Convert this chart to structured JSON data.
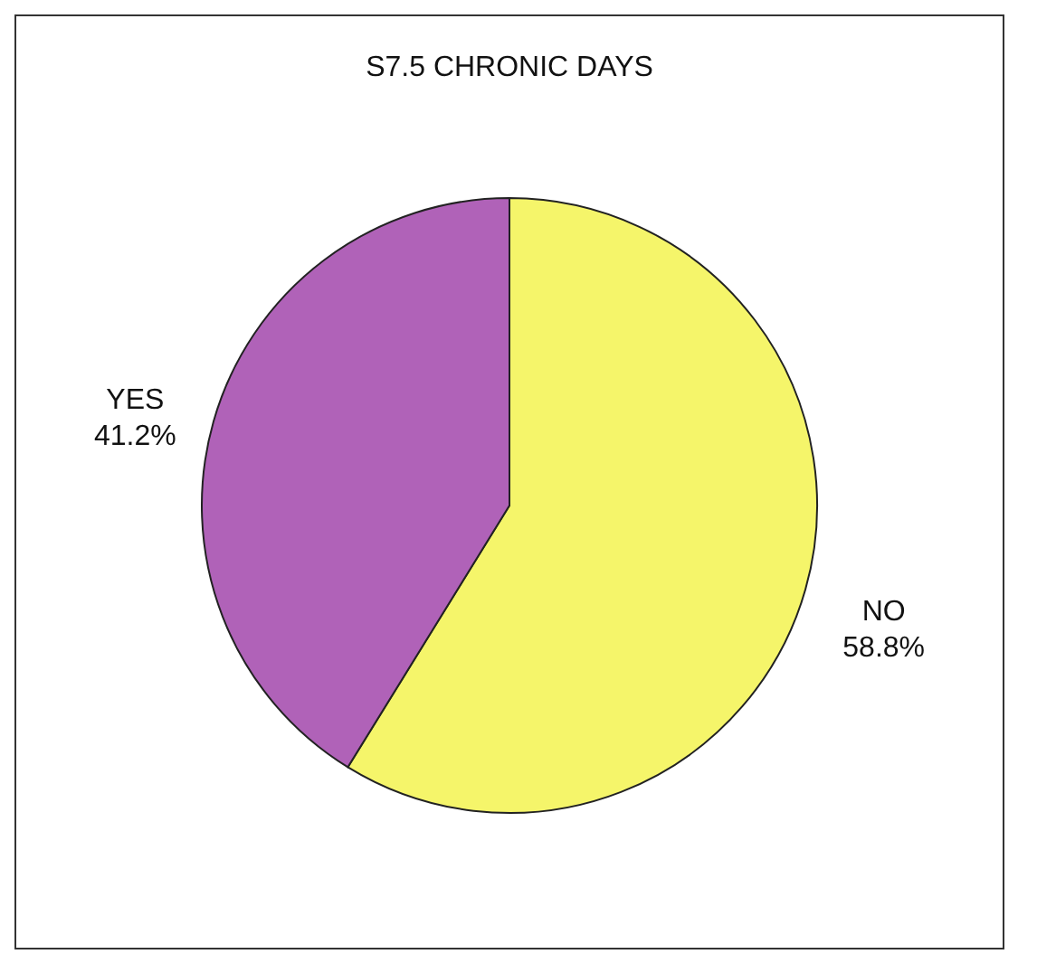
{
  "chart_data": {
    "type": "pie",
    "title": "S7.5  CHRONIC DAYS",
    "categories": [
      "NO",
      "YES"
    ],
    "values": [
      58.8,
      41.2
    ],
    "colors": [
      "#f5f56a",
      "#b062b8"
    ],
    "value_labels": [
      "58.8%",
      "41.2%"
    ]
  }
}
